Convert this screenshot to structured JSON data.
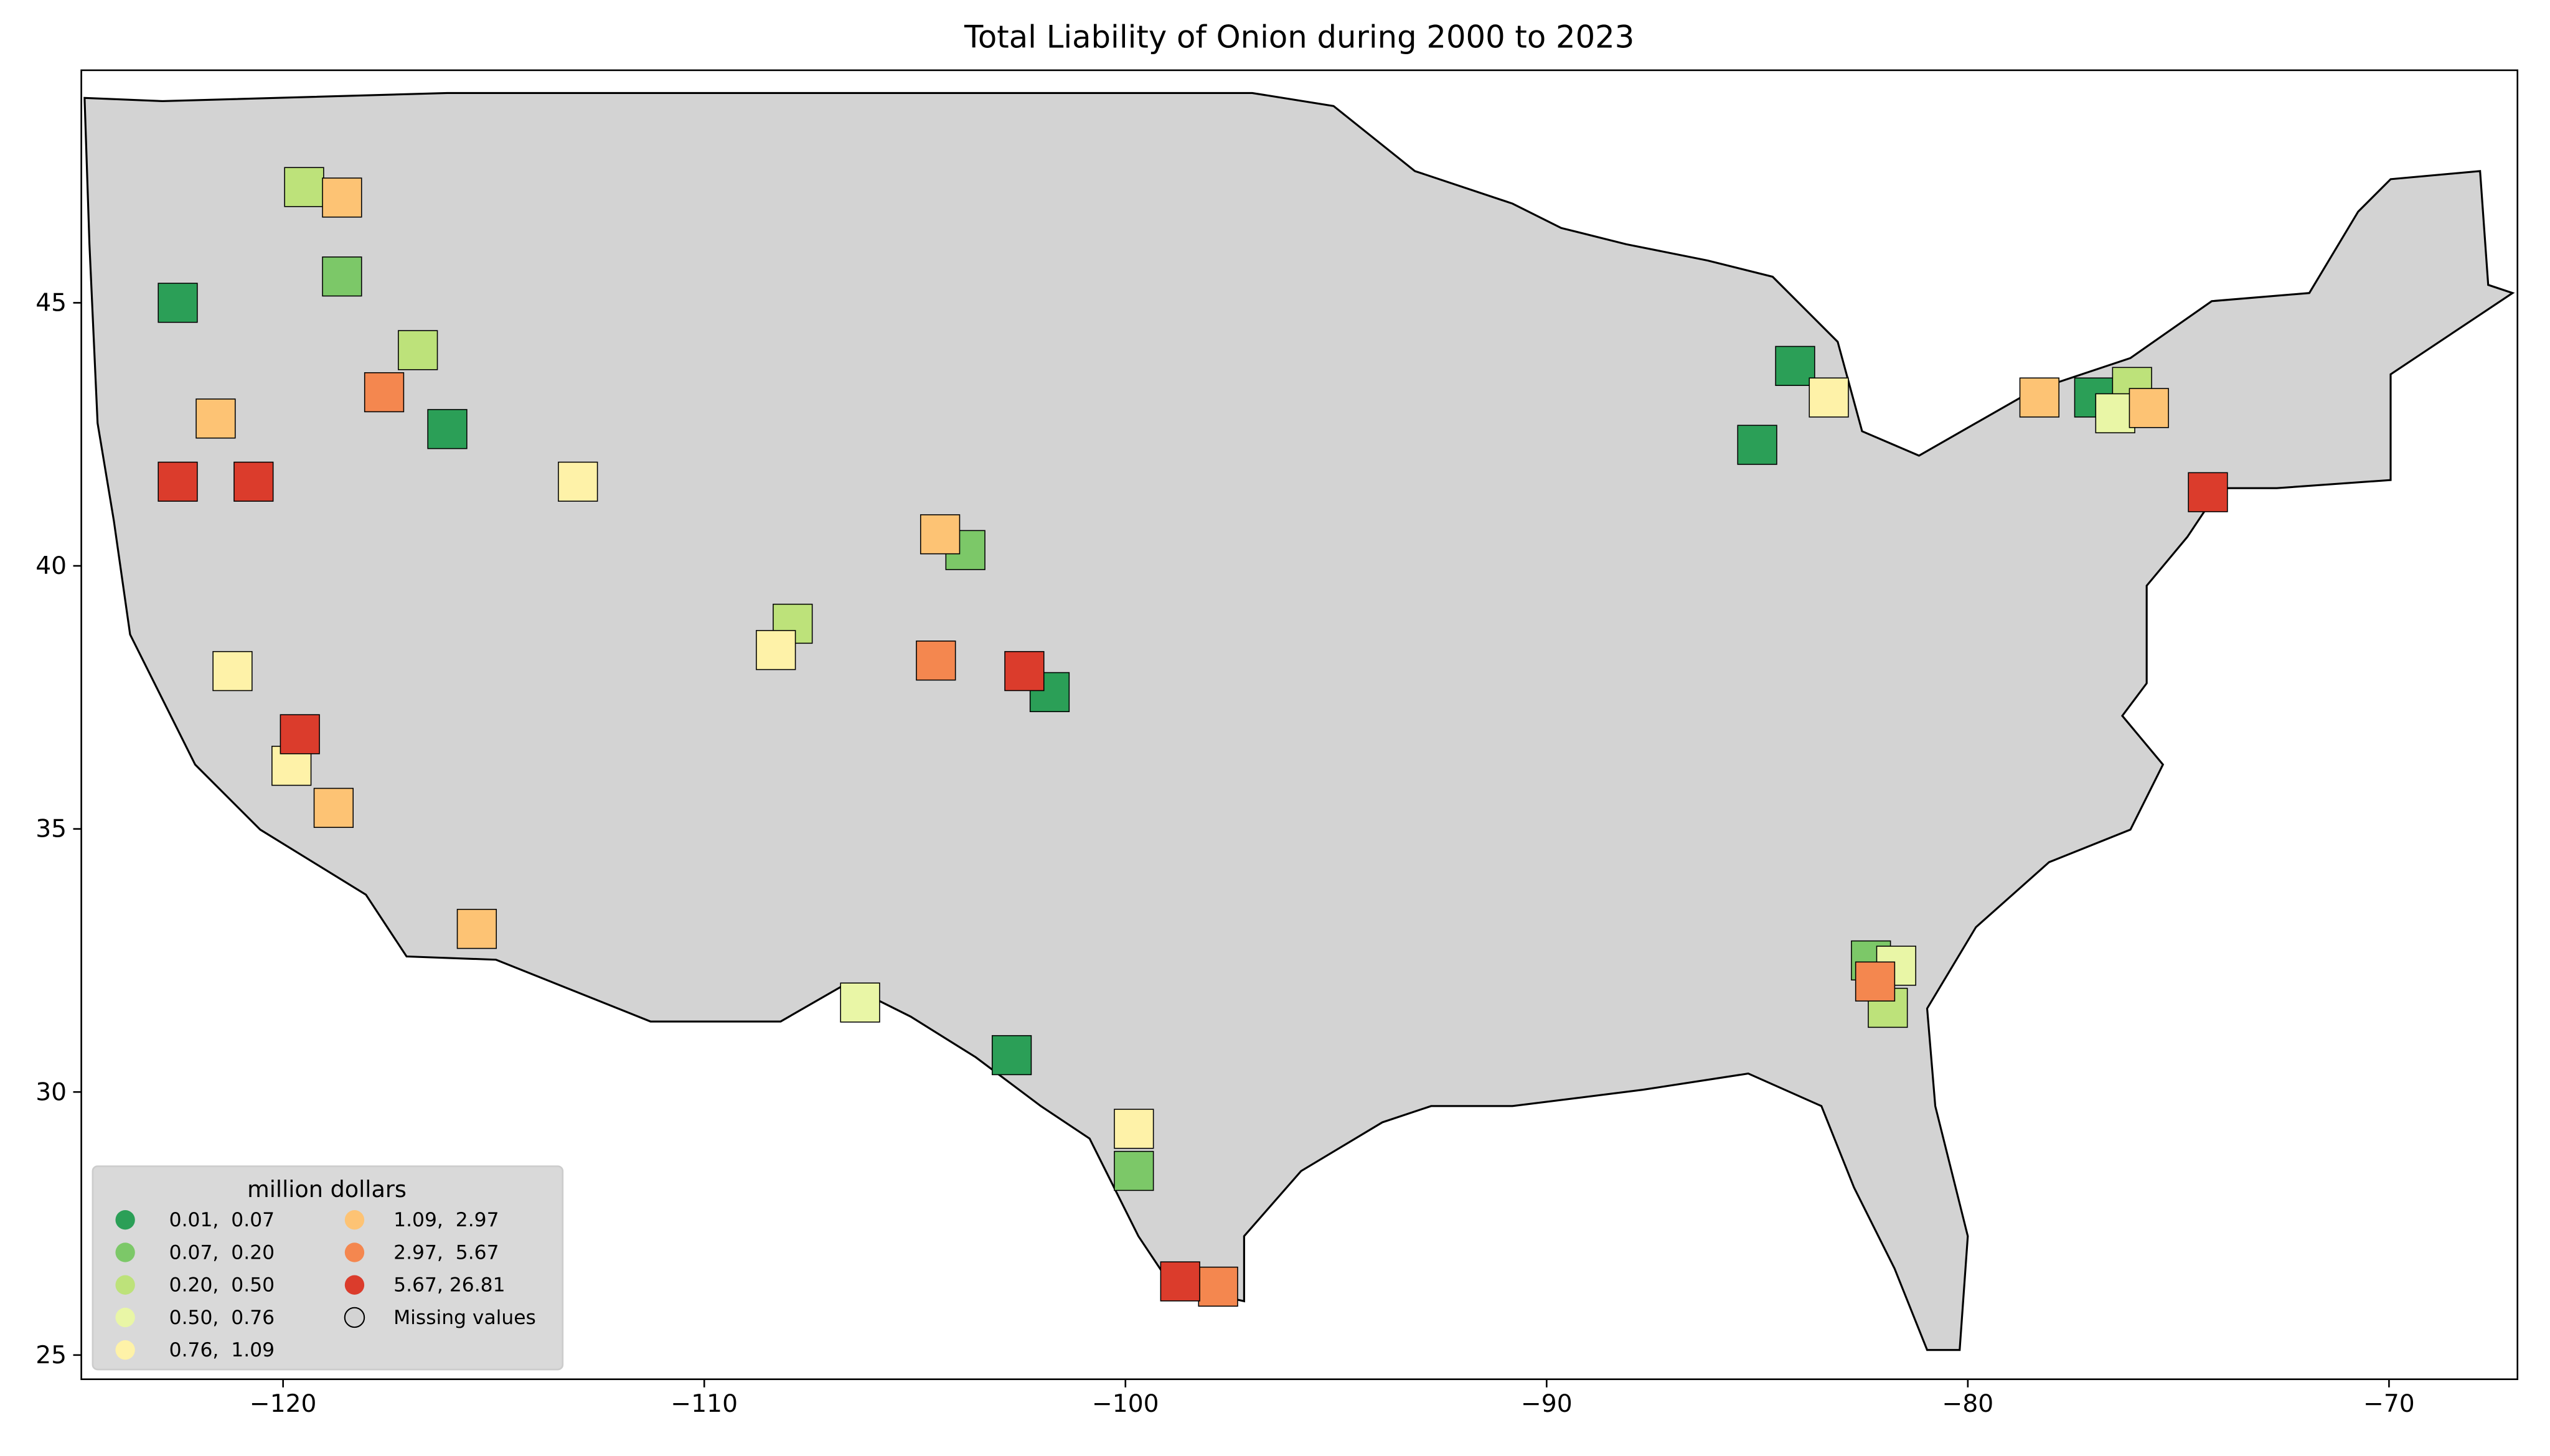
{
  "chart_data": {
    "type": "choropleth",
    "title": "Total Liability of Onion during 2000 to 2023",
    "xlim": [
      -124.79,
      -66.95
    ],
    "ylim": [
      24.54,
      49.42
    ],
    "xticks": [
      {
        "value": -120,
        "label": "−120"
      },
      {
        "value": -110,
        "label": "−110"
      },
      {
        "value": -100,
        "label": "−100"
      },
      {
        "value": -90,
        "label": "−90"
      },
      {
        "value": -80,
        "label": "−80"
      },
      {
        "value": -70,
        "label": "−70"
      }
    ],
    "yticks": [
      25,
      30,
      35,
      40,
      45
    ],
    "legend": {
      "title": "million dollars",
      "position": "lower left",
      "items": [
        {
          "label": "0.01,  0.07",
          "color": "#2b9f57",
          "counties": [
            [
              -122.5,
              45.0
            ],
            [
              -116.1,
              42.6
            ],
            [
              -102.7,
              30.7
            ],
            [
              -85.0,
              42.3
            ],
            [
              -77.0,
              43.2
            ],
            [
              -101.8,
              37.6
            ],
            [
              -84.1,
              43.8
            ]
          ]
        },
        {
          "label": "0.07,  0.20",
          "color": "#7cc868",
          "counties": [
            [
              -118.6,
              45.5
            ],
            [
              -103.8,
              40.3
            ],
            [
              -99.8,
              28.5
            ],
            [
              -82.3,
              32.5
            ]
          ]
        },
        {
          "label": "0.20,  0.50",
          "color": "#bde27a",
          "counties": [
            [
              -119.5,
              47.2
            ],
            [
              -107.9,
              38.9
            ],
            [
              -76.1,
              43.4
            ],
            [
              -81.9,
              31.6
            ],
            [
              -116.8,
              44.1
            ]
          ]
        },
        {
          "label": "0.50,  0.76",
          "color": "#e9f6a6",
          "counties": [
            [
              -81.7,
              32.4
            ],
            [
              -76.5,
              42.9
            ],
            [
              -106.3,
              31.7
            ]
          ]
        },
        {
          "label": "0.76,  1.09",
          "color": "#fef2a8",
          "counties": [
            [
              -113.0,
              41.6
            ],
            [
              -121.2,
              38.0
            ],
            [
              -99.8,
              29.3
            ],
            [
              -108.3,
              38.4
            ],
            [
              -83.3,
              43.2
            ],
            [
              -119.8,
              36.2
            ]
          ]
        },
        {
          "label": "1.09,  2.97",
          "color": "#fdc374",
          "counties": [
            [
              -118.6,
              47.0
            ],
            [
              -121.6,
              42.8
            ],
            [
              -104.4,
              40.6
            ],
            [
              -118.8,
              35.4
            ],
            [
              -115.4,
              33.1
            ],
            [
              -78.3,
              43.2
            ],
            [
              -75.7,
              43.0
            ]
          ]
        },
        {
          "label": "2.97,  5.67",
          "color": "#f4874f",
          "counties": [
            [
              -117.6,
              43.3
            ],
            [
              -104.5,
              38.2
            ],
            [
              -97.8,
              26.3
            ],
            [
              -82.2,
              32.1
            ]
          ]
        },
        {
          "label": "5.67, 26.81",
          "color": "#db3c2c",
          "counties": [
            [
              -122.5,
              41.6
            ],
            [
              -120.7,
              41.6
            ],
            [
              -119.6,
              36.8
            ],
            [
              -102.4,
              38.0
            ],
            [
              -98.7,
              26.4
            ],
            [
              -74.3,
              41.4
            ]
          ]
        },
        {
          "label": "Missing values",
          "color": "#d3d3d3",
          "counties": []
        }
      ]
    }
  }
}
